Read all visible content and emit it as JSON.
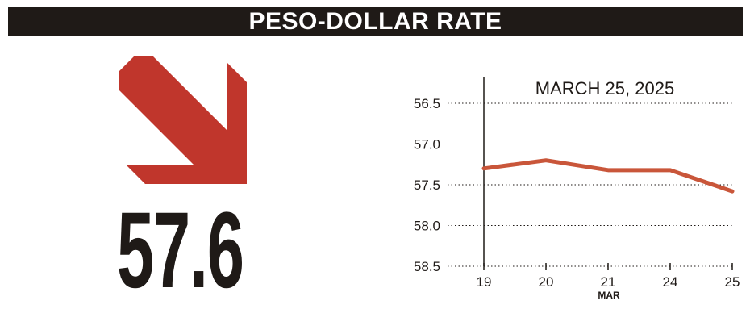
{
  "header": {
    "title": "PESO-DOLLAR RATE"
  },
  "highlight": {
    "value": "57.6",
    "direction": "down",
    "arrow_color": "#c0362c"
  },
  "colors": {
    "header_bg": "#1f1a17",
    "text": "#1f1a17",
    "line": "#c9563a"
  },
  "chart_data": {
    "type": "line",
    "title": "MARCH 25, 2025",
    "xlabel": "MAR",
    "ylabel": "",
    "y_inverted": true,
    "ylim": [
      56.2,
      58.5
    ],
    "yticks": [
      "56.5",
      "57.0",
      "57.5",
      "58.0",
      "58.5"
    ],
    "x": [
      "19",
      "20",
      "21",
      "24",
      "25"
    ],
    "values": [
      57.3,
      57.2,
      57.32,
      57.32,
      57.58
    ],
    "grid": "horizontal-dotted"
  }
}
